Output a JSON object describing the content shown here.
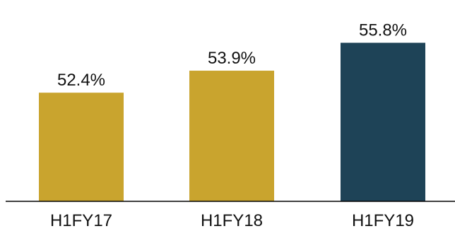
{
  "chart_data": {
    "type": "bar",
    "title": "",
    "xlabel": "",
    "ylabel": "",
    "categories": [
      "H1FY17",
      "H1FY18",
      "H1FY19"
    ],
    "values": [
      52.4,
      53.9,
      55.8
    ],
    "value_labels": [
      "52.4%",
      "53.9%",
      "55.8%"
    ],
    "unit": "%",
    "ylim": [
      45,
      56.5
    ],
    "grid": false,
    "legend": "none",
    "bar_colors": [
      "#C9A42E",
      "#C9A42E",
      "#1E4357"
    ],
    "axis_color": "#000000"
  }
}
